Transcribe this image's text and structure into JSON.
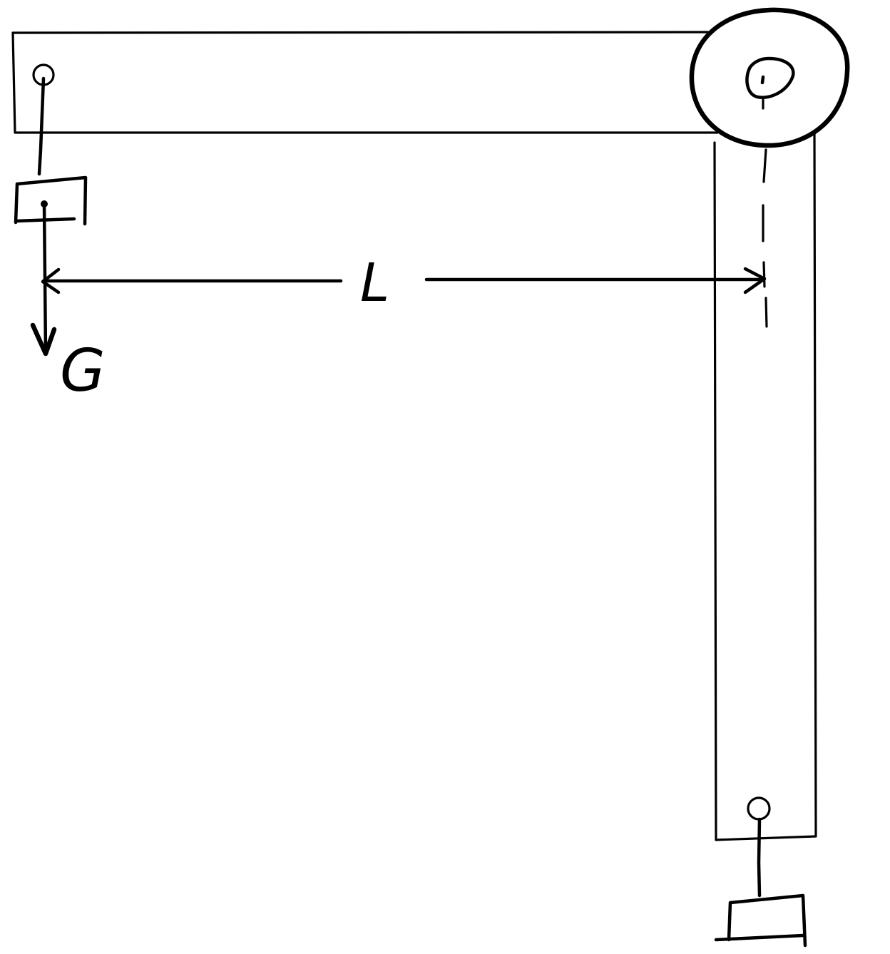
{
  "labels": {
    "length": "L",
    "weight": "G"
  },
  "colors": {
    "ink": "#000000",
    "background": "#ffffff"
  }
}
